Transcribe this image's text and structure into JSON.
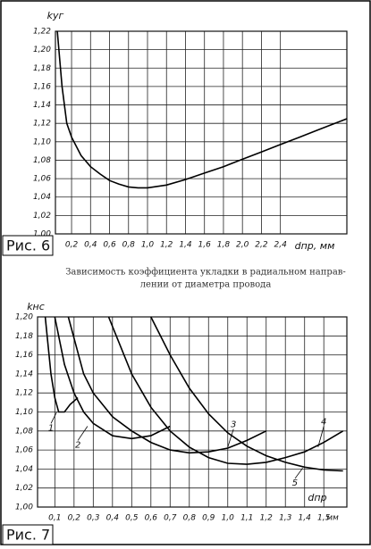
{
  "chart_data": [
    {
      "type": "line",
      "figure_label": "Рис. 6",
      "y_label": "kуг",
      "x_label": "dпр, мм",
      "caption": [
        "Зависимость коэффициента укладки в радиальном направ-",
        "лении от диаметра провода"
      ],
      "xlim": [
        0.03,
        3.1
      ],
      "ylim": [
        1.0,
        1.22
      ],
      "grid": true,
      "xticks": [
        {
          "value": 0.2,
          "label": "0,2"
        },
        {
          "value": 0.4,
          "label": "0,4"
        },
        {
          "value": 0.6,
          "label": "0,6"
        },
        {
          "value": 0.8,
          "label": "0,8"
        },
        {
          "value": 1.0,
          "label": "1,0"
        },
        {
          "value": 1.2,
          "label": "1,2"
        },
        {
          "value": 1.4,
          "label": "1,4"
        },
        {
          "value": 1.6,
          "label": "1,6"
        },
        {
          "value": 1.8,
          "label": "1,8"
        },
        {
          "value": 2.0,
          "label": "2,0"
        },
        {
          "value": 2.2,
          "label": "2,2"
        },
        {
          "value": 2.4,
          "label": "2,4"
        }
      ],
      "yticks": [
        {
          "value": 1.0,
          "label": "1,00"
        },
        {
          "value": 1.02,
          "label": "1,02"
        },
        {
          "value": 1.04,
          "label": "1,04"
        },
        {
          "value": 1.06,
          "label": "1,06"
        },
        {
          "value": 1.08,
          "label": "1,08"
        },
        {
          "value": 1.1,
          "label": "1,10"
        },
        {
          "value": 1.12,
          "label": "1,12"
        },
        {
          "value": 1.14,
          "label": "1,14"
        },
        {
          "value": 1.16,
          "label": "1,16"
        },
        {
          "value": 1.18,
          "label": "1,18"
        },
        {
          "value": 1.2,
          "label": "1,20"
        },
        {
          "value": 1.22,
          "label": "1,22"
        }
      ],
      "series": [
        {
          "color": "#000000",
          "x": [
            0.05,
            0.1,
            0.15,
            0.2,
            0.3,
            0.4,
            0.5,
            0.6,
            0.7,
            0.8,
            0.9,
            1.0,
            1.2,
            1.4,
            1.6,
            1.8,
            2.0,
            2.2,
            2.4,
            2.6,
            2.8,
            3.0,
            3.1
          ],
          "values": [
            1.22,
            1.16,
            1.12,
            1.105,
            1.085,
            1.073,
            1.065,
            1.058,
            1.054,
            1.051,
            1.05,
            1.05,
            1.053,
            1.059,
            1.066,
            1.073,
            1.081,
            1.089,
            1.097,
            1.105,
            1.113,
            1.121,
            1.125
          ]
        }
      ]
    },
    {
      "type": "line",
      "figure_label": "Рис. 7",
      "y_label": "kнс",
      "x_label": "dпр",
      "x_unit": "мм",
      "xlim": [
        0.01,
        1.62
      ],
      "ylim": [
        1.0,
        1.2
      ],
      "grid": true,
      "xticks": [
        {
          "value": 0.1,
          "label": "0,1"
        },
        {
          "value": 0.2,
          "label": "0,2"
        },
        {
          "value": 0.3,
          "label": "0,3"
        },
        {
          "value": 0.4,
          "label": "0,4"
        },
        {
          "value": 0.5,
          "label": "0,5"
        },
        {
          "value": 0.6,
          "label": "0,6"
        },
        {
          "value": 0.7,
          "label": "0,7"
        },
        {
          "value": 0.8,
          "label": "0,8"
        },
        {
          "value": 0.9,
          "label": "0,9"
        },
        {
          "value": 1.0,
          "label": "1,0"
        },
        {
          "value": 1.1,
          "label": "1,1"
        },
        {
          "value": 1.2,
          "label": "1,2"
        },
        {
          "value": 1.3,
          "label": "1,3"
        },
        {
          "value": 1.4,
          "label": "1,4"
        },
        {
          "value": 1.5,
          "label": "1,5"
        }
      ],
      "yticks": [
        {
          "value": 1.0,
          "label": "1,00"
        },
        {
          "value": 1.02,
          "label": "1,02"
        },
        {
          "value": 1.04,
          "label": "1,04"
        },
        {
          "value": 1.06,
          "label": "1,06"
        },
        {
          "value": 1.08,
          "label": "1,08"
        },
        {
          "value": 1.1,
          "label": "1,10"
        },
        {
          "value": 1.12,
          "label": "1,12"
        },
        {
          "value": 1.14,
          "label": "1,14"
        },
        {
          "value": 1.16,
          "label": "1,16"
        },
        {
          "value": 1.18,
          "label": "1,18"
        },
        {
          "value": 1.2,
          "label": "1,20"
        }
      ],
      "series": [
        {
          "name": "1",
          "color": "#000000",
          "x": [
            0.05,
            0.08,
            0.1,
            0.12,
            0.15,
            0.18,
            0.22
          ],
          "values": [
            1.2,
            1.14,
            1.115,
            1.1,
            1.1,
            1.108,
            1.115
          ]
        },
        {
          "name": "2",
          "color": "#000000",
          "x": [
            0.1,
            0.15,
            0.2,
            0.25,
            0.3,
            0.4,
            0.5,
            0.6,
            0.7
          ],
          "values": [
            1.2,
            1.15,
            1.12,
            1.1,
            1.088,
            1.075,
            1.072,
            1.075,
            1.085
          ]
        },
        {
          "name": "3",
          "color": "#000000",
          "x": [
            0.17,
            0.25,
            0.3,
            0.4,
            0.5,
            0.6,
            0.7,
            0.8,
            0.9,
            1.0,
            1.1,
            1.2
          ],
          "values": [
            1.2,
            1.14,
            1.12,
            1.095,
            1.08,
            1.068,
            1.06,
            1.057,
            1.058,
            1.062,
            1.07,
            1.08
          ]
        },
        {
          "name": "4",
          "color": "#000000",
          "x": [
            0.38,
            0.5,
            0.6,
            0.7,
            0.8,
            0.9,
            1.0,
            1.1,
            1.2,
            1.3,
            1.4,
            1.5,
            1.6
          ],
          "values": [
            1.2,
            1.14,
            1.105,
            1.08,
            1.063,
            1.052,
            1.046,
            1.045,
            1.047,
            1.052,
            1.058,
            1.068,
            1.08
          ]
        },
        {
          "name": "5",
          "color": "#000000",
          "x": [
            0.6,
            0.7,
            0.8,
            0.9,
            1.0,
            1.1,
            1.2,
            1.3,
            1.4,
            1.5,
            1.6
          ],
          "values": [
            1.2,
            1.16,
            1.125,
            1.098,
            1.078,
            1.064,
            1.054,
            1.047,
            1.042,
            1.039,
            1.038
          ]
        }
      ]
    }
  ]
}
